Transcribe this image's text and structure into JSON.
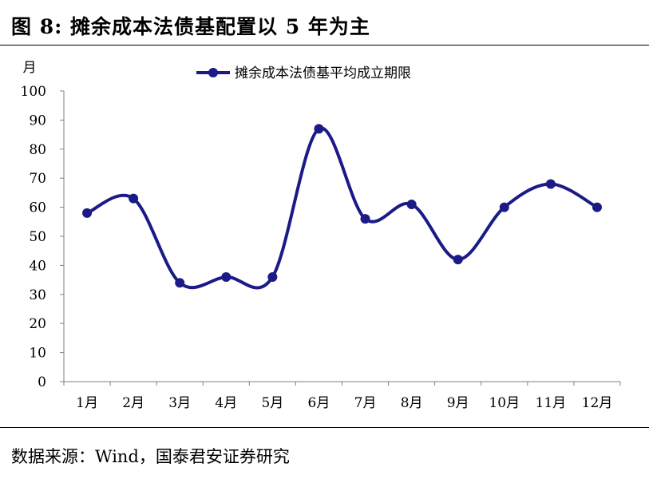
{
  "figure": {
    "title": "图 8:  摊余成本法债基配置以 5 年为主",
    "source": "数据来源：Wind，国泰君安证券研究"
  },
  "chart_data": {
    "type": "line",
    "categories": [
      "1月",
      "2月",
      "3月",
      "4月",
      "5月",
      "6月",
      "7月",
      "8月",
      "9月",
      "10月",
      "11月",
      "12月"
    ],
    "series": [
      {
        "name": "摊余成本法债基平均成立期限",
        "values": [
          58,
          63,
          34,
          36,
          36,
          87,
          56,
          61,
          42,
          60,
          68,
          60
        ],
        "color": "#1b1b87"
      }
    ],
    "ylabel": "月",
    "ylim": [
      0,
      100
    ],
    "yticks": [
      0,
      10,
      20,
      30,
      40,
      50,
      60,
      70,
      80,
      90,
      100
    ],
    "grid": false,
    "smooth": true,
    "legend_position": "top-center"
  }
}
